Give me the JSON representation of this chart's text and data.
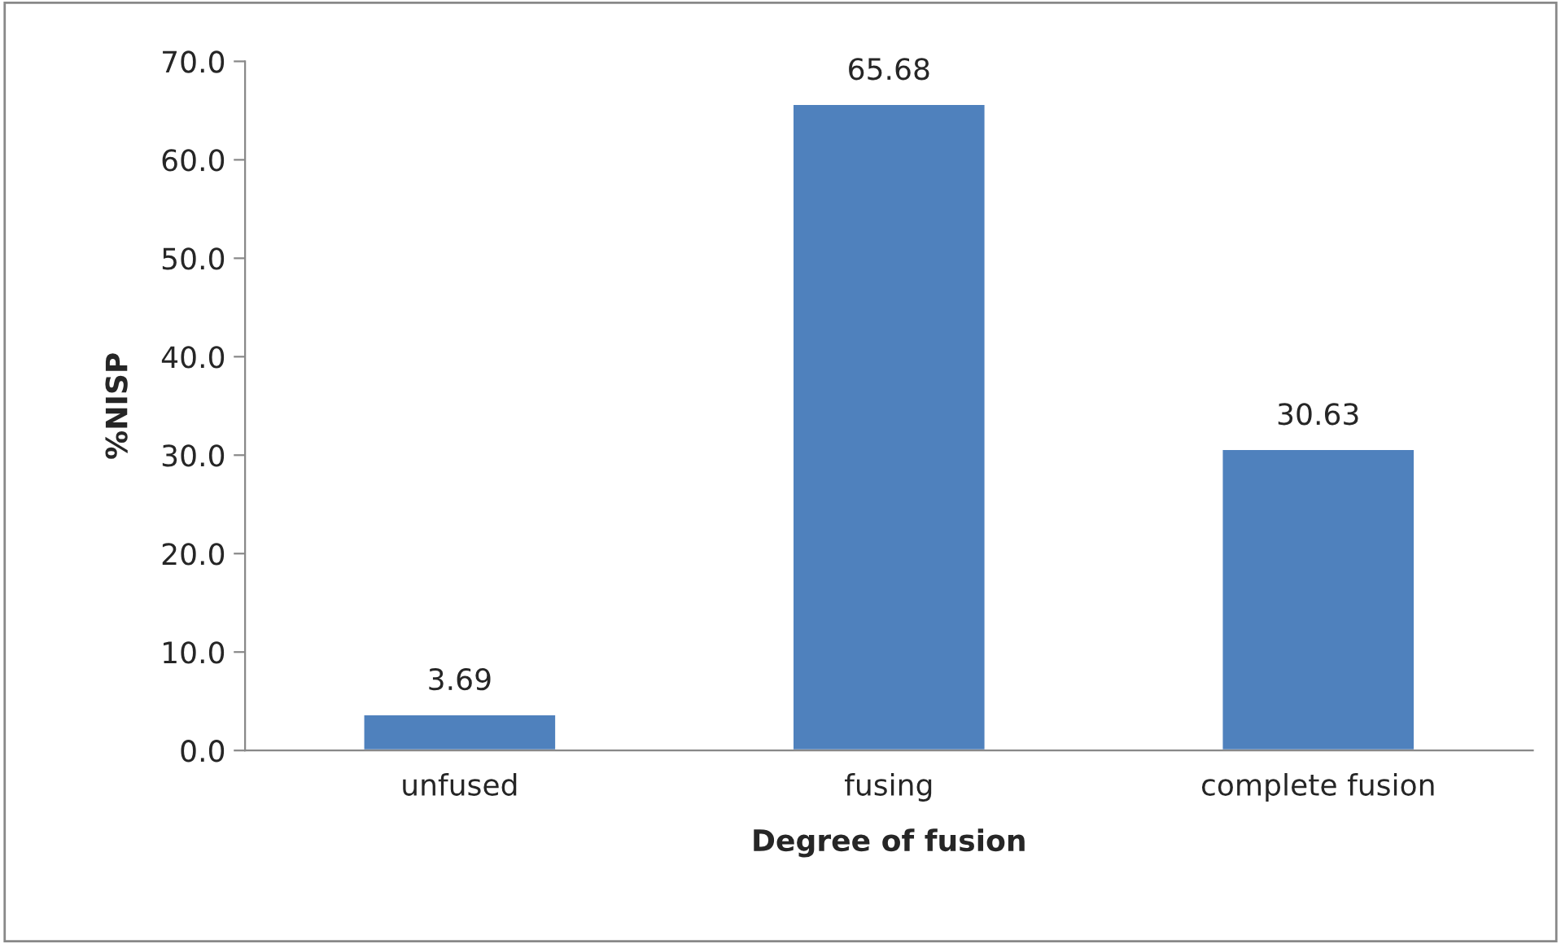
{
  "chart_data": {
    "type": "bar",
    "xlabel": "Degree of fusion",
    "ylabel": "%NISP",
    "categories": [
      "unfused",
      "fusing",
      "complete fusion"
    ],
    "values": [
      3.69,
      65.68,
      30.63
    ],
    "color": "#4f81bd",
    "ylim": [
      0,
      70
    ],
    "yticks": [
      {
        "value": 0,
        "label": "0.0"
      },
      {
        "value": 10,
        "label": "10.0"
      },
      {
        "value": 20,
        "label": "20.0"
      },
      {
        "value": 30,
        "label": "30.0"
      },
      {
        "value": 40,
        "label": "40.0"
      },
      {
        "value": 50,
        "label": "50.0"
      },
      {
        "value": 60,
        "label": "60.0"
      },
      {
        "value": 70,
        "label": "70.0"
      }
    ],
    "data_labels": true,
    "grid": false,
    "legend": false
  }
}
